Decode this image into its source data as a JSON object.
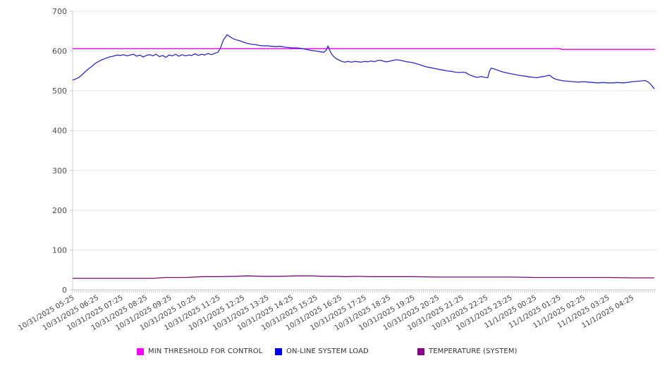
{
  "chart_data": {
    "type": "line",
    "title": "",
    "xlabel": "",
    "ylabel": "",
    "legend_position": "bottom",
    "grid": {
      "horizontal": true,
      "vertical": false
    },
    "colors": {
      "axis": "#cccccc",
      "gridline": "#e7e7e7",
      "tick": "#bdbdbd",
      "tick_label": "#4d4d4d",
      "x_label": "#404040"
    },
    "y_axis": {
      "min": 0,
      "max": 700,
      "tick_step": 100,
      "ticks": [
        0,
        100,
        200,
        300,
        400,
        500,
        600,
        700
      ]
    },
    "x_axis": {
      "total_minutes": 1440,
      "minor_tick_every_minutes": 5,
      "label_every_minutes": 60,
      "label_rotation_deg": -30,
      "tick_labels": [
        "10/31/2025 05:25",
        "10/31/2025 06:25",
        "10/31/2025 07:25",
        "10/31/2025 08:25",
        "10/31/2025 09:25",
        "10/31/2025 10:25",
        "10/31/2025 11:25",
        "10/31/2025 12:25",
        "10/31/2025 13:25",
        "10/31/2025 14:25",
        "10/31/2025 15:25",
        "10/31/2025 16:25",
        "10/31/2025 17:25",
        "10/31/2025 18:25",
        "10/31/2025 19:25",
        "10/31/2025 20:25",
        "10/31/2025 21:25",
        "10/31/2025 22:25",
        "10/31/2025 23:25",
        "11/1/2025 00:25",
        "11/1/2025 01:25",
        "11/1/2025 02:25",
        "11/1/2025 03:25",
        "11/1/2025 04:25"
      ]
    },
    "series": [
      {
        "name": "MIN THRESHOLD FOR CONTROL",
        "key": "min-threshold-for-control",
        "color": "#e816e8",
        "legend_color": "#ff00ff",
        "stroke_width": 1.5,
        "points": [
          [
            0,
            606
          ],
          [
            1204,
            606
          ],
          [
            1206,
            604
          ],
          [
            1437,
            604
          ]
        ]
      },
      {
        "name": "ON-LINE SYSTEM LOAD",
        "key": "online-system-load",
        "color": "#2a2ad0",
        "legend_color": "#0000ee",
        "stroke_width": 1.3,
        "points": [
          [
            0,
            527
          ],
          [
            8,
            530
          ],
          [
            16,
            534
          ],
          [
            24,
            541
          ],
          [
            32,
            549
          ],
          [
            40,
            556
          ],
          [
            48,
            562
          ],
          [
            56,
            569
          ],
          [
            64,
            574
          ],
          [
            72,
            578
          ],
          [
            80,
            581
          ],
          [
            90,
            585
          ],
          [
            100,
            587
          ],
          [
            110,
            590
          ],
          [
            118,
            589
          ],
          [
            126,
            591
          ],
          [
            134,
            588
          ],
          [
            142,
            590
          ],
          [
            150,
            592
          ],
          [
            158,
            587
          ],
          [
            166,
            590
          ],
          [
            174,
            585
          ],
          [
            182,
            589
          ],
          [
            190,
            591
          ],
          [
            198,
            588
          ],
          [
            206,
            592
          ],
          [
            214,
            586
          ],
          [
            222,
            589
          ],
          [
            230,
            584
          ],
          [
            238,
            590
          ],
          [
            246,
            588
          ],
          [
            254,
            592
          ],
          [
            262,
            587
          ],
          [
            270,
            591
          ],
          [
            278,
            588
          ],
          [
            286,
            590
          ],
          [
            294,
            589
          ],
          [
            302,
            593
          ],
          [
            310,
            589
          ],
          [
            318,
            592
          ],
          [
            326,
            590
          ],
          [
            334,
            594
          ],
          [
            342,
            591
          ],
          [
            350,
            594
          ],
          [
            358,
            597
          ],
          [
            364,
            606
          ],
          [
            372,
            628
          ],
          [
            381,
            641
          ],
          [
            388,
            636
          ],
          [
            396,
            631
          ],
          [
            404,
            628
          ],
          [
            412,
            626
          ],
          [
            422,
            622
          ],
          [
            432,
            619
          ],
          [
            442,
            617
          ],
          [
            452,
            616
          ],
          [
            462,
            614
          ],
          [
            472,
            613
          ],
          [
            482,
            613
          ],
          [
            492,
            612
          ],
          [
            502,
            611
          ],
          [
            512,
            612
          ],
          [
            522,
            610
          ],
          [
            532,
            609
          ],
          [
            542,
            608
          ],
          [
            552,
            608
          ],
          [
            562,
            607
          ],
          [
            572,
            605
          ],
          [
            582,
            603
          ],
          [
            592,
            601
          ],
          [
            602,
            600
          ],
          [
            612,
            598
          ],
          [
            620,
            597
          ],
          [
            626,
            603
          ],
          [
            630,
            613
          ],
          [
            634,
            602
          ],
          [
            638,
            594
          ],
          [
            644,
            586
          ],
          [
            650,
            581
          ],
          [
            656,
            578
          ],
          [
            664,
            574
          ],
          [
            672,
            572
          ],
          [
            680,
            574
          ],
          [
            688,
            572
          ],
          [
            696,
            574
          ],
          [
            704,
            573
          ],
          [
            712,
            572
          ],
          [
            720,
            574
          ],
          [
            728,
            573
          ],
          [
            736,
            575
          ],
          [
            744,
            573
          ],
          [
            752,
            576
          ],
          [
            760,
            577
          ],
          [
            768,
            574
          ],
          [
            776,
            573
          ],
          [
            784,
            575
          ],
          [
            792,
            577
          ],
          [
            800,
            578
          ],
          [
            808,
            577
          ],
          [
            816,
            575
          ],
          [
            824,
            573
          ],
          [
            832,
            572
          ],
          [
            842,
            570
          ],
          [
            852,
            567
          ],
          [
            864,
            563
          ],
          [
            874,
            560
          ],
          [
            884,
            558
          ],
          [
            894,
            556
          ],
          [
            904,
            554
          ],
          [
            914,
            552
          ],
          [
            924,
            550
          ],
          [
            934,
            549
          ],
          [
            944,
            547
          ],
          [
            954,
            546
          ],
          [
            962,
            547
          ],
          [
            969,
            546
          ],
          [
            976,
            542
          ],
          [
            984,
            538
          ],
          [
            992,
            535
          ],
          [
            1000,
            534
          ],
          [
            1008,
            536
          ],
          [
            1016,
            534
          ],
          [
            1024,
            533
          ],
          [
            1028,
            549
          ],
          [
            1032,
            557
          ],
          [
            1040,
            555
          ],
          [
            1048,
            552
          ],
          [
            1056,
            549
          ],
          [
            1066,
            546
          ],
          [
            1076,
            544
          ],
          [
            1086,
            542
          ],
          [
            1096,
            540
          ],
          [
            1106,
            538
          ],
          [
            1116,
            537
          ],
          [
            1126,
            535
          ],
          [
            1136,
            534
          ],
          [
            1146,
            533
          ],
          [
            1154,
            535
          ],
          [
            1162,
            536
          ],
          [
            1170,
            538
          ],
          [
            1177,
            539
          ],
          [
            1184,
            533
          ],
          [
            1190,
            530
          ],
          [
            1200,
            527
          ],
          [
            1212,
            525
          ],
          [
            1224,
            524
          ],
          [
            1236,
            523
          ],
          [
            1248,
            522
          ],
          [
            1260,
            523
          ],
          [
            1272,
            522
          ],
          [
            1284,
            521
          ],
          [
            1296,
            520
          ],
          [
            1308,
            521
          ],
          [
            1320,
            520
          ],
          [
            1332,
            520
          ],
          [
            1344,
            521
          ],
          [
            1356,
            520
          ],
          [
            1368,
            521
          ],
          [
            1380,
            523
          ],
          [
            1392,
            524
          ],
          [
            1404,
            525
          ],
          [
            1412,
            526
          ],
          [
            1420,
            522
          ],
          [
            1428,
            514
          ],
          [
            1435,
            505
          ]
        ]
      },
      {
        "name": "TEMPERATURE (SYSTEM)",
        "key": "temperature-system",
        "color": "#770e77",
        "legend_color": "#8b008b",
        "stroke_width": 1.3,
        "points": [
          [
            0,
            29
          ],
          [
            120,
            29
          ],
          [
            200,
            29
          ],
          [
            230,
            31
          ],
          [
            280,
            31
          ],
          [
            320,
            33
          ],
          [
            360,
            33
          ],
          [
            400,
            34
          ],
          [
            430,
            35
          ],
          [
            470,
            34
          ],
          [
            510,
            34
          ],
          [
            550,
            35
          ],
          [
            590,
            35
          ],
          [
            620,
            34
          ],
          [
            650,
            34
          ],
          [
            673,
            33
          ],
          [
            700,
            34
          ],
          [
            740,
            33
          ],
          [
            780,
            33
          ],
          [
            840,
            33
          ],
          [
            900,
            32
          ],
          [
            960,
            32
          ],
          [
            1020,
            32
          ],
          [
            1080,
            32
          ],
          [
            1140,
            31
          ],
          [
            1200,
            31
          ],
          [
            1260,
            31
          ],
          [
            1320,
            31
          ],
          [
            1380,
            30
          ],
          [
            1435,
            30
          ]
        ]
      }
    ]
  }
}
